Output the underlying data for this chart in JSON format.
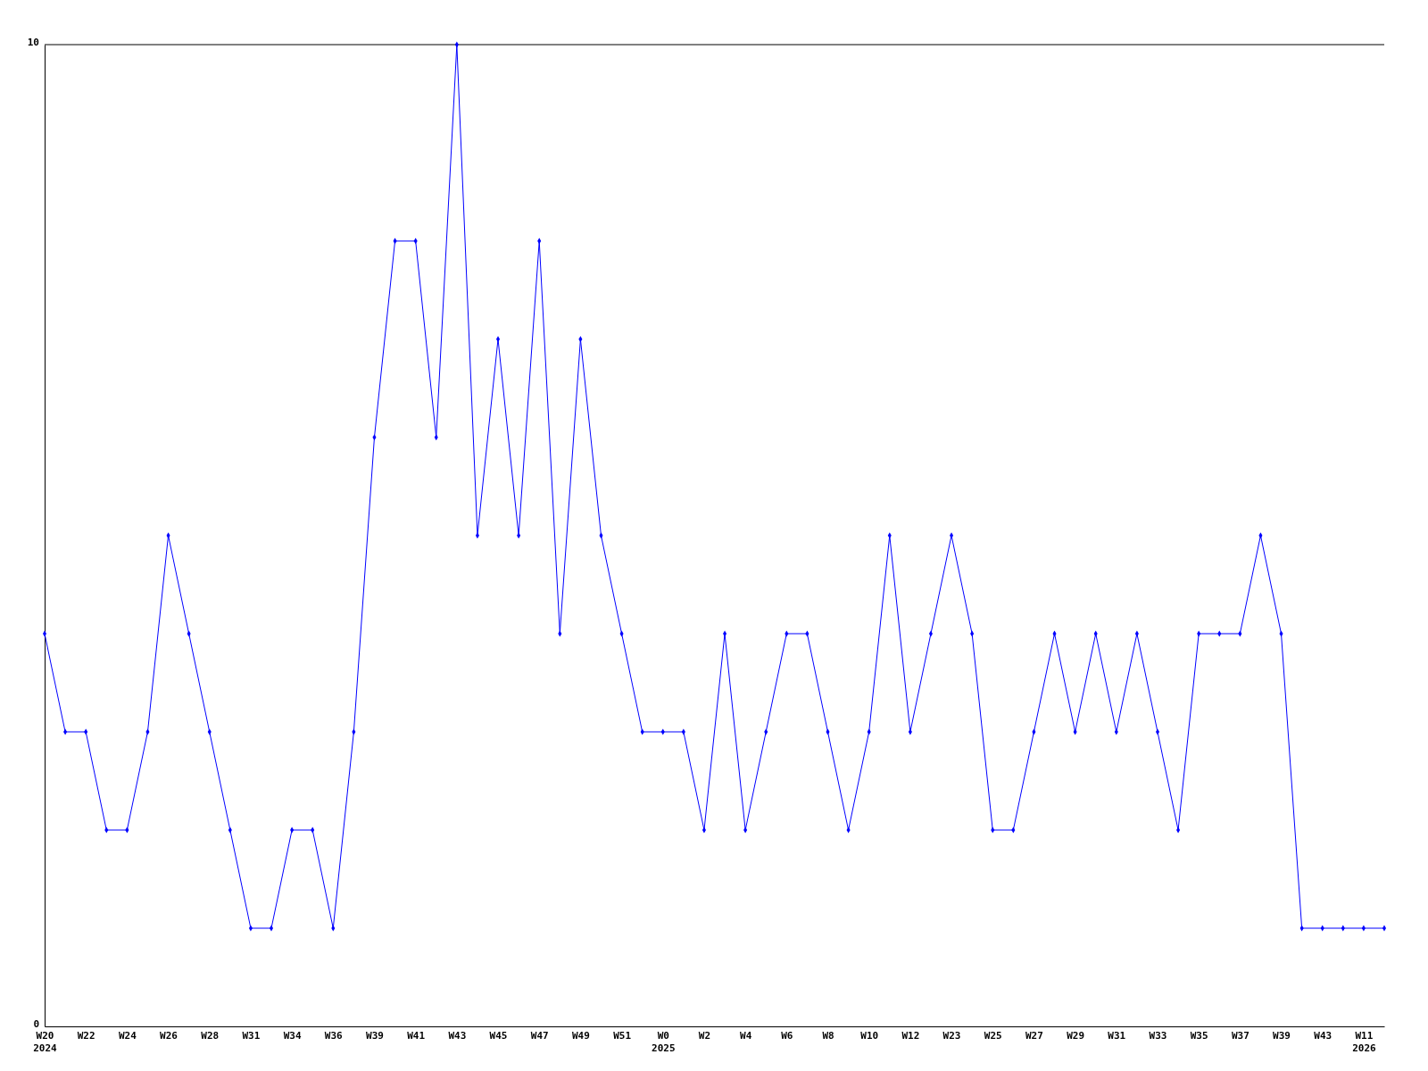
{
  "chart_data": {
    "type": "line",
    "categories": [
      "W20\n2024",
      null,
      "W22",
      null,
      "W24",
      null,
      "W26",
      null,
      "W28",
      null,
      "W31",
      null,
      "W34",
      null,
      "W36",
      null,
      "W39",
      null,
      "W41",
      null,
      "W43",
      null,
      "W45",
      null,
      "W47",
      null,
      "W49",
      null,
      "W51",
      null,
      "W0\n2025",
      null,
      "W2",
      null,
      "W4",
      null,
      "W6",
      null,
      "W8",
      null,
      "W10",
      null,
      "W12",
      null,
      "W23",
      null,
      "W25",
      null,
      "W27",
      null,
      "W29",
      null,
      "W31",
      null,
      "W33",
      null,
      "W35",
      null,
      "W37",
      null,
      "W39",
      null,
      "W43",
      null,
      "W11\n2026",
      null
    ],
    "series": [
      {
        "color": "#0000ff",
        "values": [
          4,
          3,
          3,
          2,
          2,
          3,
          5,
          4,
          3,
          2,
          1,
          1,
          2,
          2,
          1,
          3,
          6,
          8,
          8,
          6,
          10,
          5,
          7,
          5,
          8,
          4,
          7,
          5,
          4,
          3,
          3,
          3,
          2,
          4,
          2,
          3,
          4,
          4,
          3,
          2,
          3,
          5,
          3,
          4,
          5,
          4,
          2,
          2,
          3,
          4,
          3,
          4,
          3,
          4,
          3,
          2,
          4,
          4,
          4,
          5,
          4,
          1,
          1,
          1,
          1,
          1
        ]
      }
    ],
    "ylim": [
      0,
      10
    ],
    "yticks": [
      0,
      10
    ],
    "grid": false,
    "marker": "diamond",
    "line_style": "solid"
  }
}
